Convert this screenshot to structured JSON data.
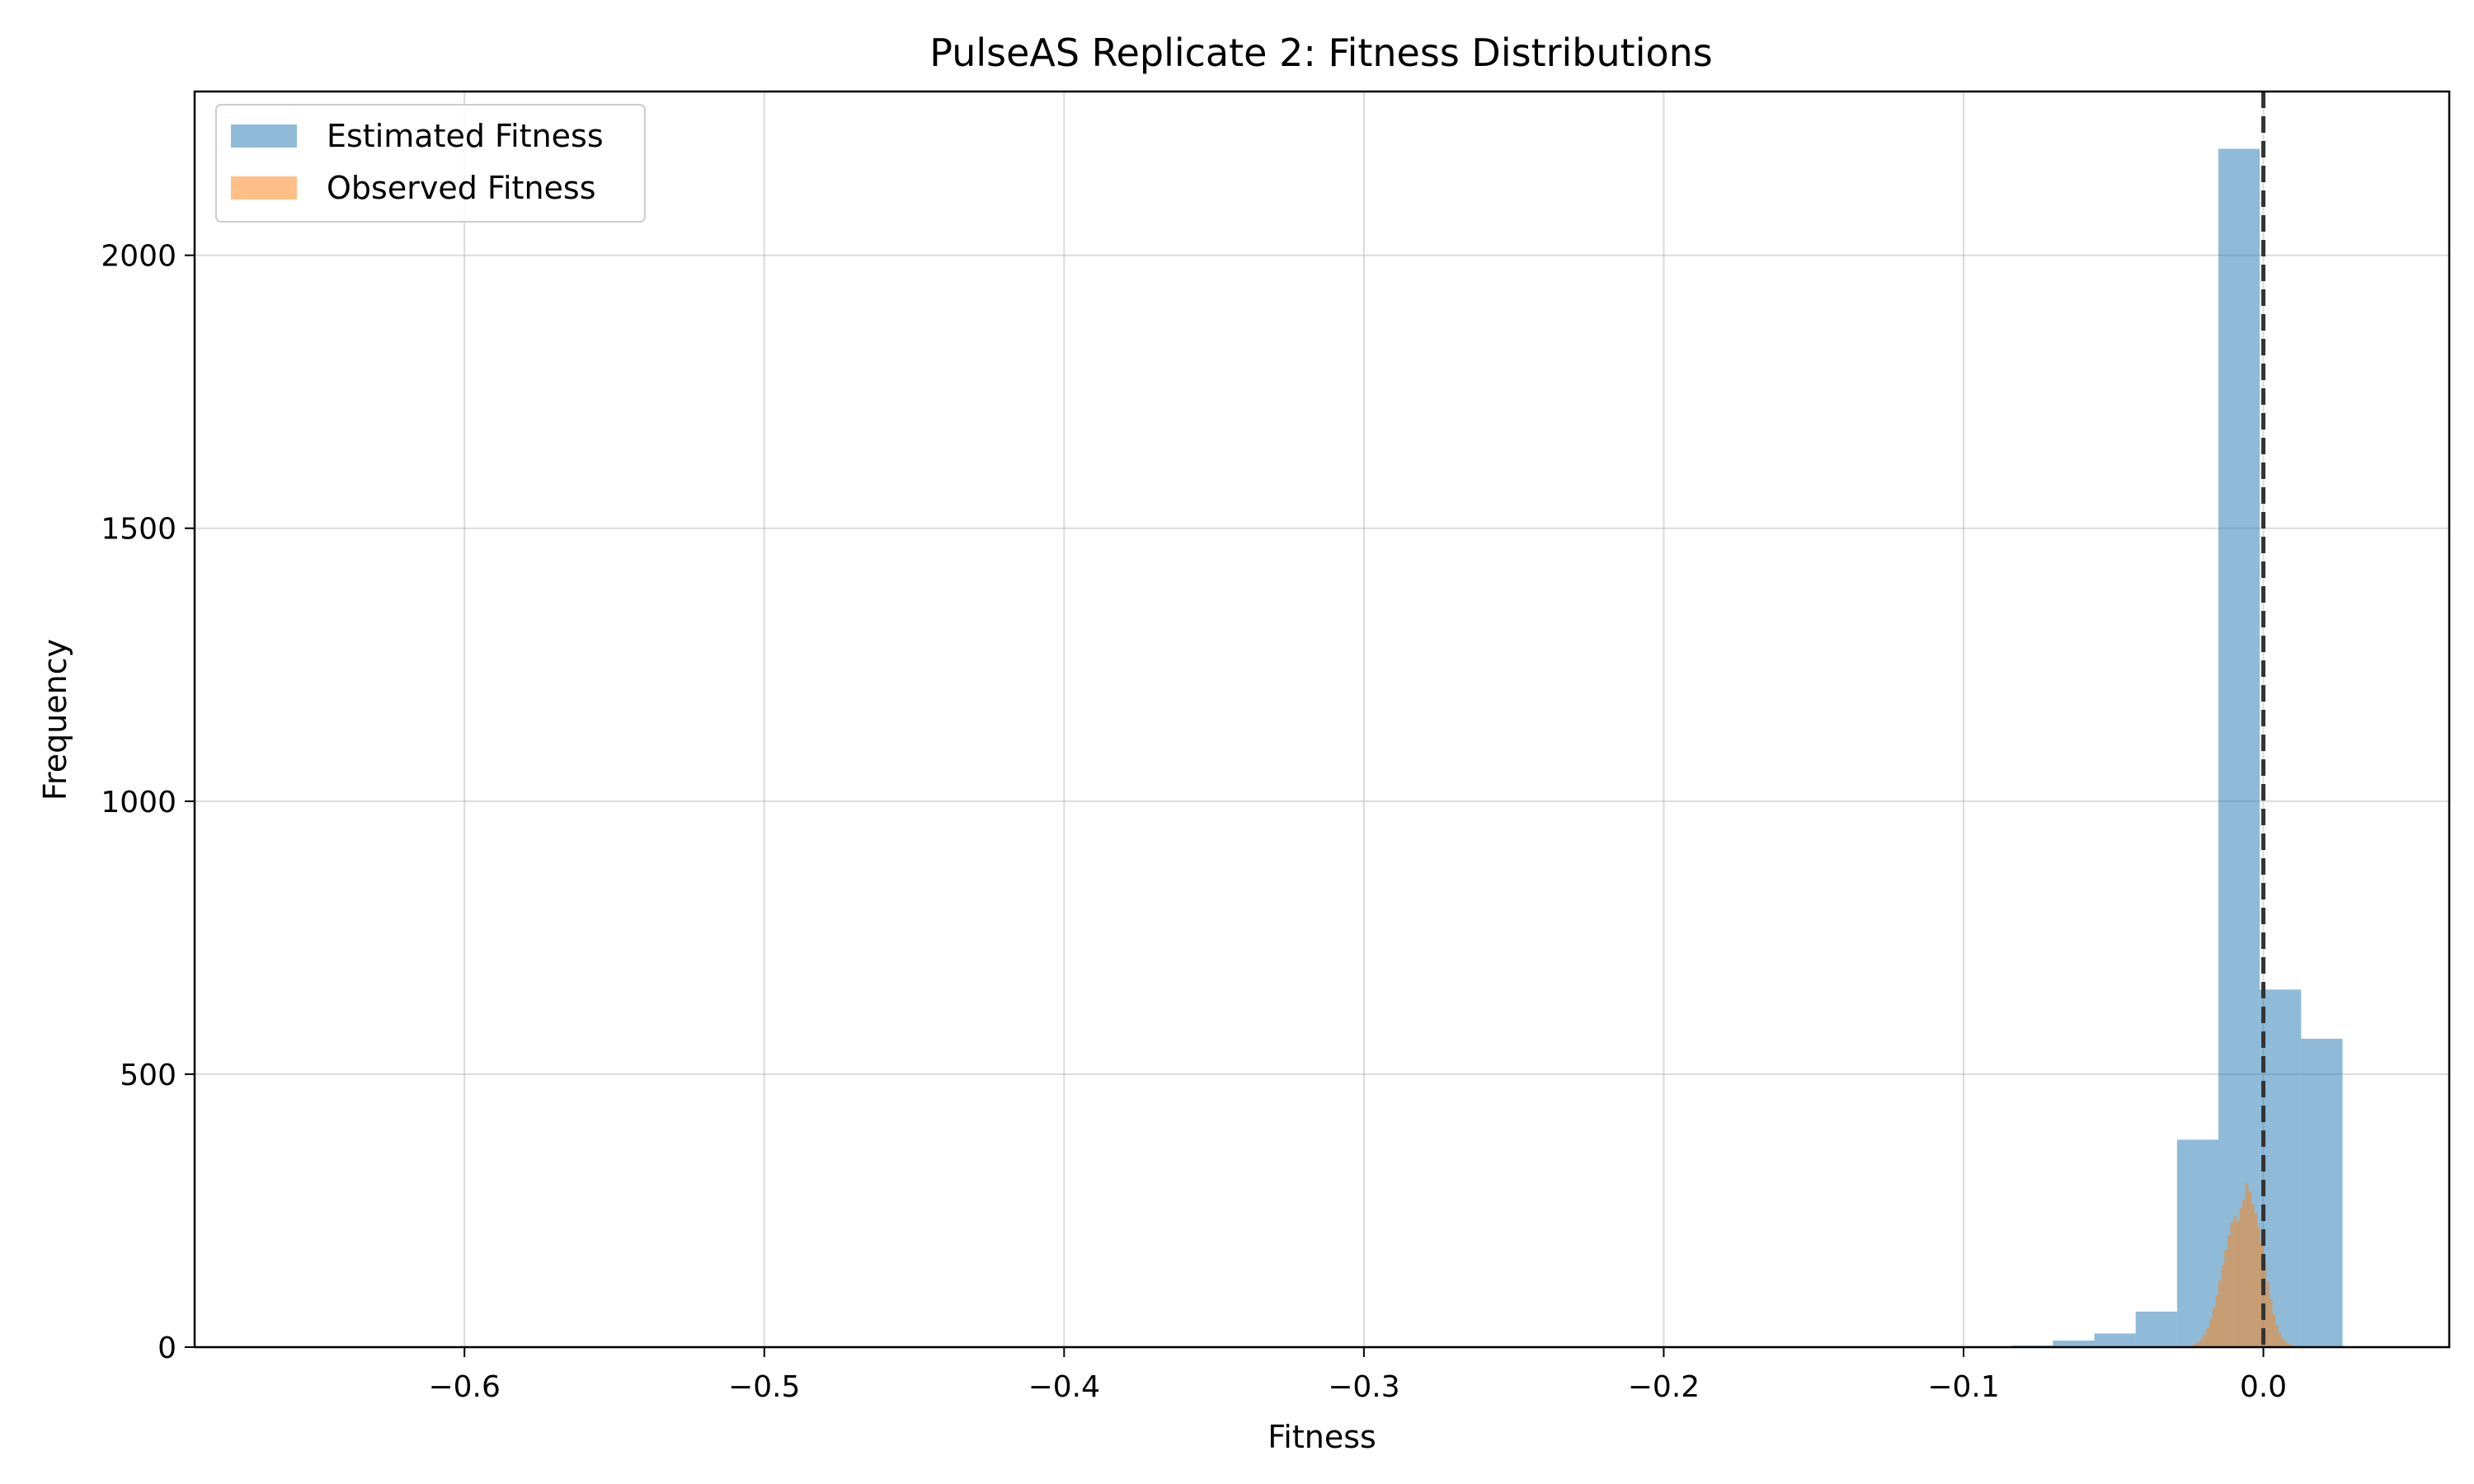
{
  "chart_data": {
    "type": "histogram",
    "title": "PulseAS Replicate 2: Fitness Distributions",
    "xlabel": "Fitness",
    "ylabel": "Frequency",
    "xlim": [
      -0.69,
      0.062
    ],
    "ylim": [
      0,
      2300
    ],
    "xticks": [
      -0.6,
      -0.5,
      -0.4,
      -0.3,
      -0.2,
      -0.1,
      0.0
    ],
    "xtick_labels": [
      "−0.6",
      "−0.5",
      "−0.4",
      "−0.3",
      "−0.2",
      "−0.1",
      "0.0"
    ],
    "yticks": [
      0,
      500,
      1000,
      1500,
      2000
    ],
    "ytick_labels": [
      "0",
      "500",
      "1000",
      "1500",
      "2000"
    ],
    "grid": true,
    "legend_position": "top-left",
    "reference_line": {
      "x": 0.0,
      "style": "dashed",
      "color": "#333333"
    },
    "series": [
      {
        "name": "Estimated Fitness",
        "color": "#1f77b4",
        "alpha": 0.5,
        "bin_start": -0.0978,
        "bin_width": 0.0138,
        "counts": [
          1,
          3,
          12,
          25,
          65,
          380,
          2195,
          655,
          565
        ]
      },
      {
        "name": "Observed Fitness",
        "color": "#ff7f0e",
        "alpha": 0.5,
        "bin_start": -0.025,
        "bin_width": 0.001,
        "counts": [
          2,
          4,
          6,
          10,
          16,
          24,
          36,
          52,
          72,
          95,
          122,
          150,
          178,
          205,
          228,
          240,
          232,
          255,
          270,
          300,
          285,
          262,
          245,
          220,
          190,
          155,
          120,
          88,
          60,
          40,
          26,
          16,
          10,
          6,
          4,
          3,
          2,
          1,
          1,
          1
        ]
      }
    ]
  }
}
